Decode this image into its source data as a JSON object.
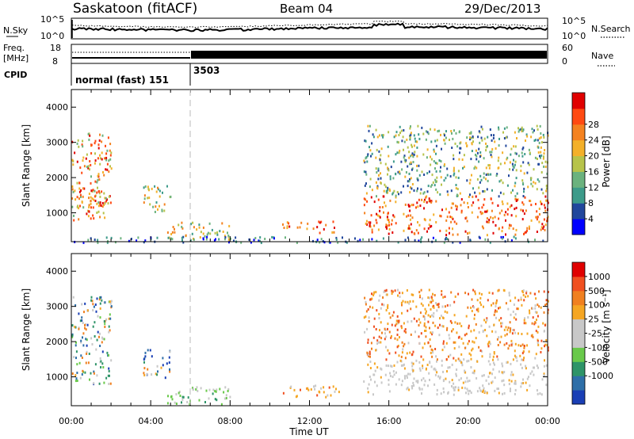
{
  "header": {
    "station": "Saskatoon (fitACF)",
    "beam": "Beam 04",
    "date": "29/Dec/2013"
  },
  "noise_panel": {
    "left_label": "N.Sky",
    "right_label": "N.Search",
    "left_ticks": [
      "10^5",
      "10^0"
    ],
    "right_ticks": [
      "10^5",
      "10^0"
    ]
  },
  "freq_panel": {
    "left_label_1": "Freq.",
    "left_label_2": "[MHz]",
    "left_ticks": [
      "18",
      "8"
    ],
    "right_label": "Nave",
    "right_ticks": [
      "60",
      "0"
    ]
  },
  "cpid": {
    "label": "CPID",
    "mode_1": "normal (fast) 151",
    "mode_2": "3503"
  },
  "colorbars": {
    "colors": {
      "power": [
        "#0000ff",
        "#21479c",
        "#3d9b8a",
        "#6bb27e",
        "#b7c34a",
        "#f3b02a",
        "#f48220",
        "#ff4a12",
        "#e00000"
      ],
      "velocity": [
        "#1a3fb5",
        "#2e6fa8",
        "#2e9468",
        "#69c94a",
        "#c8c8c8",
        "#c8c8c8",
        "#f5a623",
        "#f08020",
        "#f05020",
        "#e00000"
      ]
    }
  },
  "chart_data": [
    {
      "type": "heatmap",
      "panel": "power",
      "ylabel": "Slant Range [km]",
      "xlabel": "",
      "x_ticks": [
        "00:00",
        "04:00",
        "08:00",
        "12:00",
        "16:00",
        "20:00",
        "00:00"
      ],
      "y_ticks": [
        "1000",
        "2000",
        "3000",
        "4000"
      ],
      "ylim": [
        180,
        4500
      ],
      "xlim": [
        0,
        24
      ],
      "colorbar": {
        "label": "Power [dB]",
        "ticks": [
          "4",
          "8",
          "12",
          "16",
          "20",
          "24",
          "28"
        ],
        "range": [
          0,
          30
        ]
      },
      "regions": [
        {
          "t0": 0.0,
          "t1": 2.0,
          "r0": 800,
          "r1": 3300,
          "level": "mid-high"
        },
        {
          "t0": 0.0,
          "t1": 1.6,
          "r0": 1150,
          "r1": 1700,
          "level": "high"
        },
        {
          "t0": 3.6,
          "t1": 5.0,
          "r0": 1000,
          "r1": 1800,
          "level": "mid"
        },
        {
          "t0": 4.8,
          "t1": 8.0,
          "r0": 250,
          "r1": 750,
          "level": "mid"
        },
        {
          "t0": 10.6,
          "t1": 13.5,
          "r0": 450,
          "r1": 780,
          "level": "high"
        },
        {
          "t0": 14.7,
          "t1": 24.0,
          "r0": 400,
          "r1": 1500,
          "level": "high"
        },
        {
          "t0": 14.7,
          "t1": 24.0,
          "r0": 1500,
          "r1": 3500,
          "level": "low-mid"
        },
        {
          "t0": 0.0,
          "t1": 24.0,
          "r0": 180,
          "r1": 350,
          "level": "low"
        }
      ]
    },
    {
      "type": "heatmap",
      "panel": "velocity",
      "ylabel": "Slant Range [km]",
      "xlabel": "Time UT",
      "x_ticks": [
        "00:00",
        "04:00",
        "08:00",
        "12:00",
        "16:00",
        "20:00",
        "00:00"
      ],
      "y_ticks": [
        "1000",
        "2000",
        "3000",
        "4000"
      ],
      "ylim": [
        180,
        4500
      ],
      "xlim": [
        0,
        24
      ],
      "colorbar": {
        "label": "Velocity [m s⁻¹]",
        "ticks": [
          "1000",
          "500",
          "100",
          "25",
          "-25",
          "-100",
          "-500",
          "-1000"
        ],
        "range": [
          -1000,
          1000
        ]
      },
      "regions": [
        {
          "t0": 0.0,
          "t1": 2.0,
          "r0": 800,
          "r1": 3300,
          "level": "mixed"
        },
        {
          "t0": 3.6,
          "t1": 5.0,
          "r0": 1000,
          "r1": 1800,
          "level": "mixed"
        },
        {
          "t0": 4.8,
          "t1": 8.0,
          "r0": 250,
          "r1": 750,
          "level": "positive"
        },
        {
          "t0": 10.6,
          "t1": 13.5,
          "r0": 450,
          "r1": 780,
          "level": "negative"
        },
        {
          "t0": 14.7,
          "t1": 24.0,
          "r0": 500,
          "r1": 1500,
          "level": "near-zero"
        },
        {
          "t0": 14.7,
          "t1": 24.0,
          "r0": 1500,
          "r1": 3500,
          "level": "negative"
        }
      ]
    }
  ]
}
